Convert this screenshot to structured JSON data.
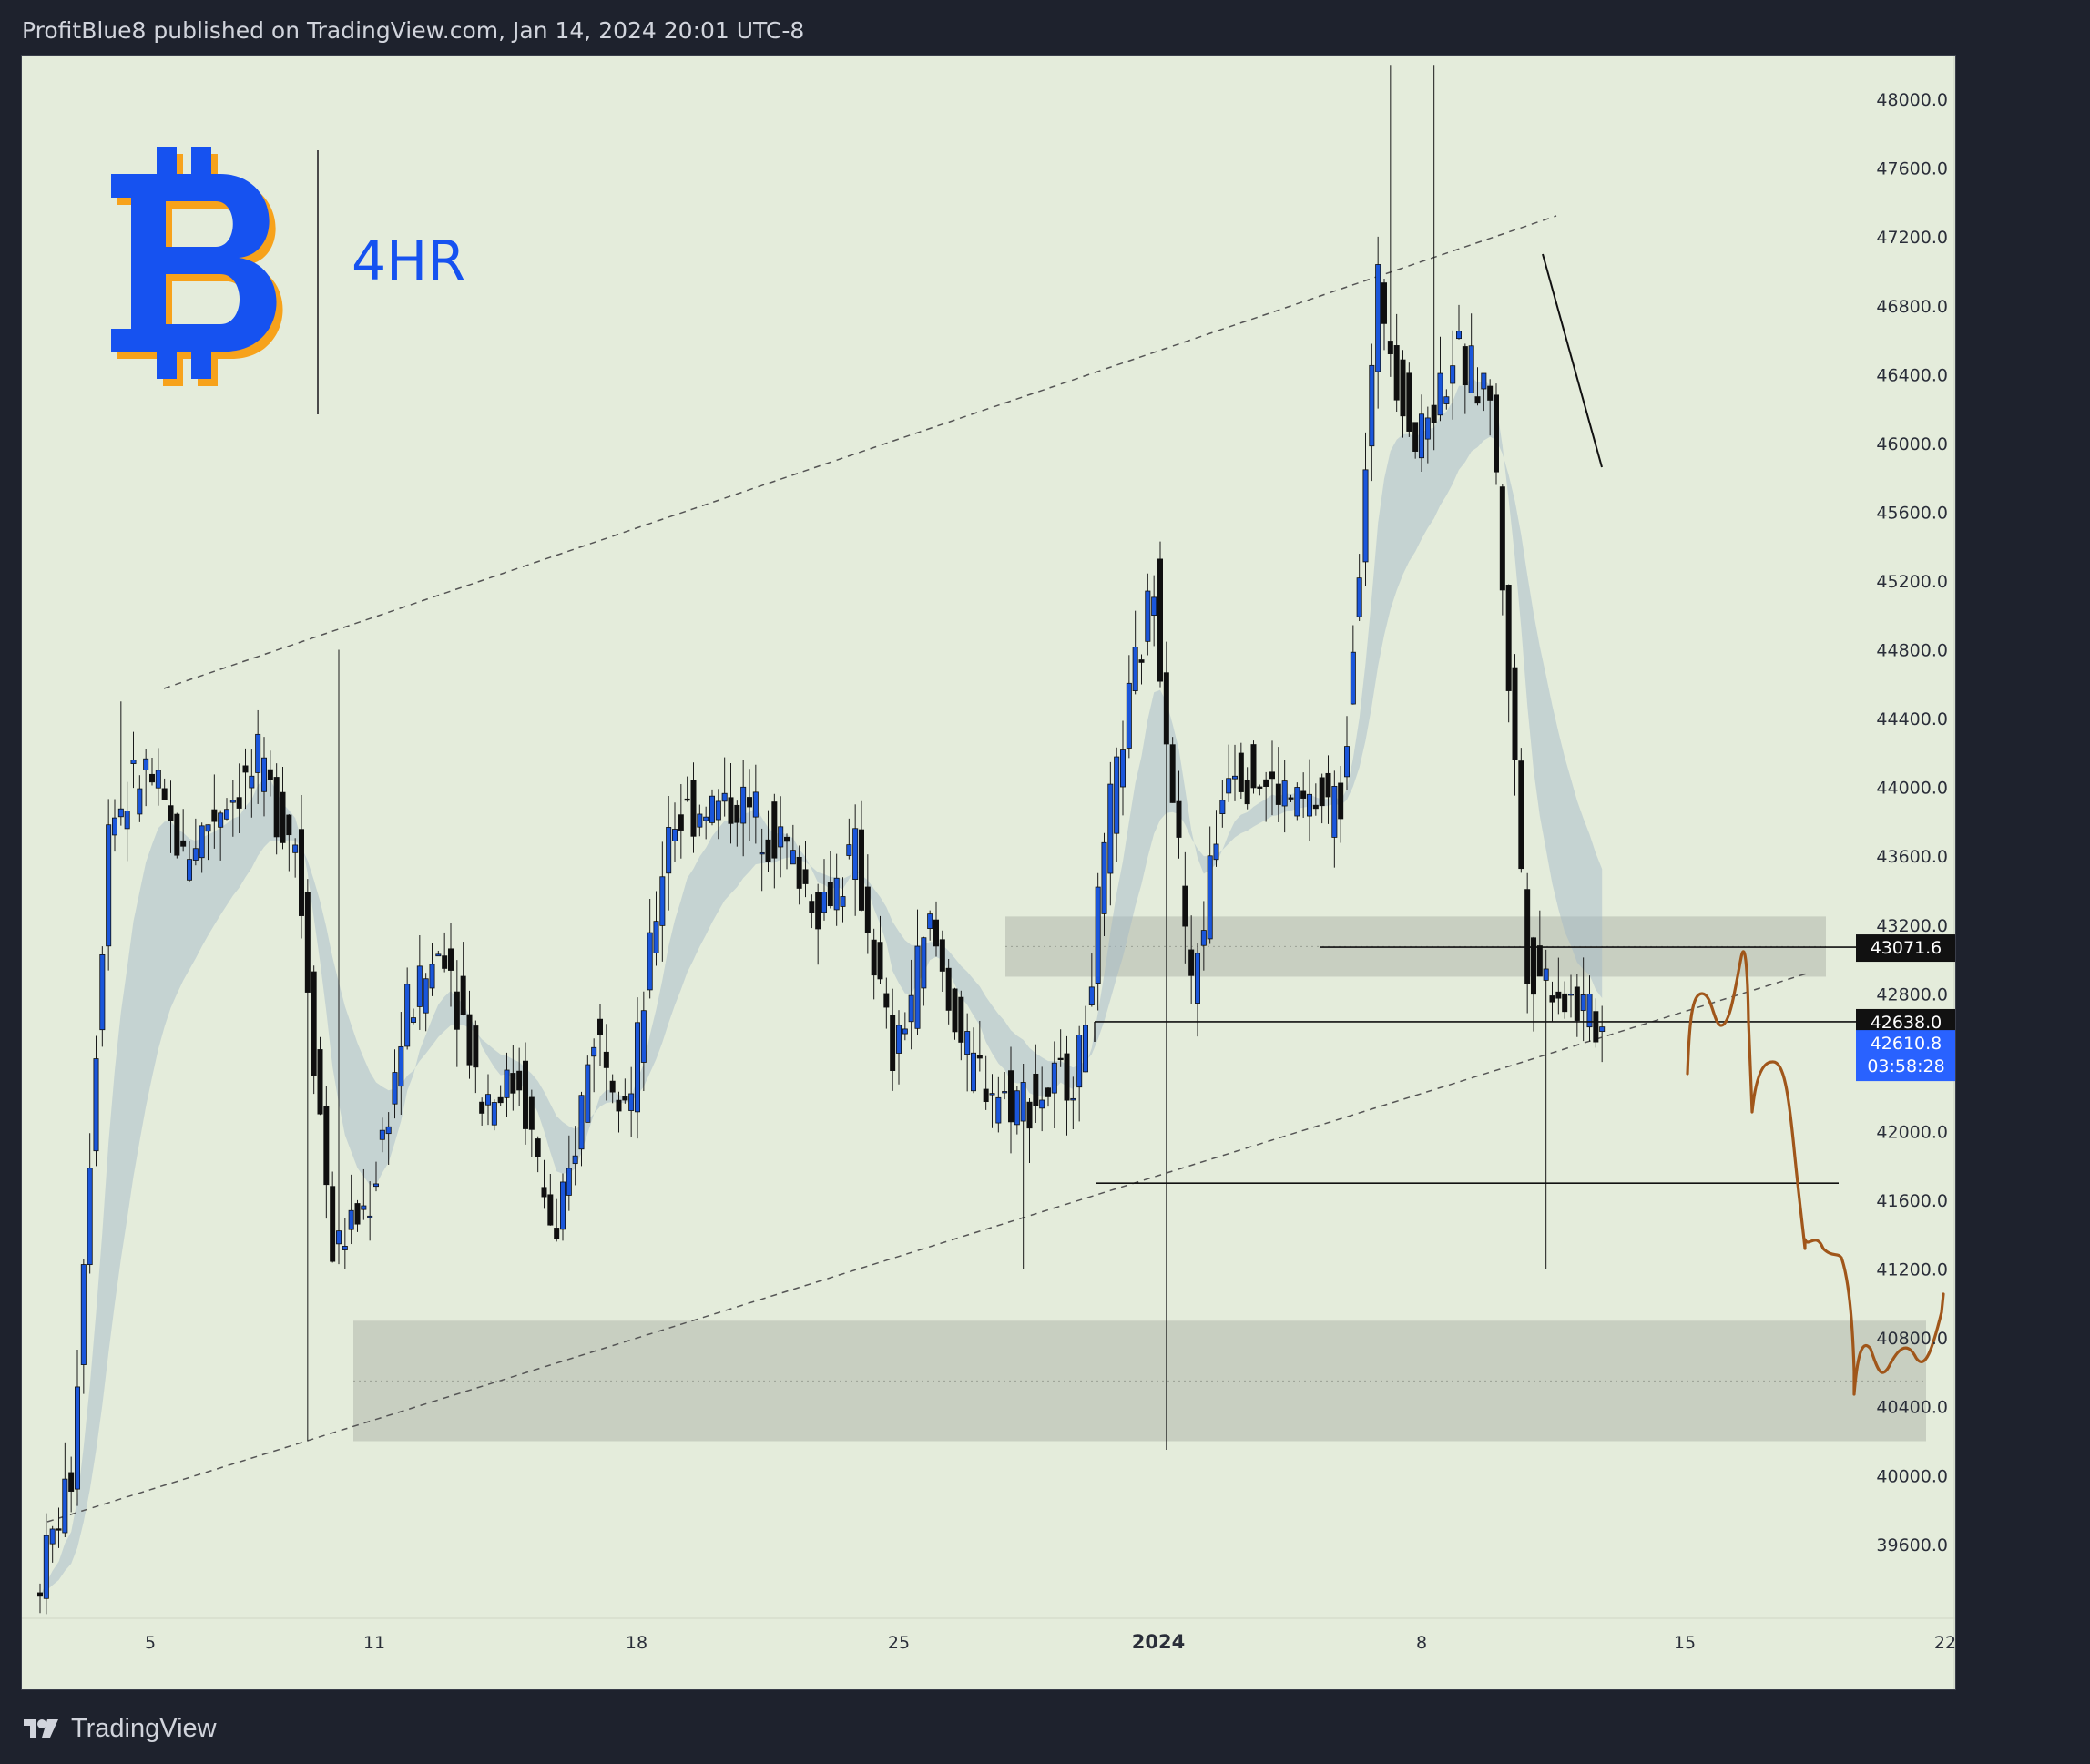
{
  "header": {
    "published_text": "ProfitBlue8 published on TradingView.com, Jan 14, 2024 20:01 UTC-8"
  },
  "overlay": {
    "timeframe_label": "4HR",
    "logo_icon": "bitcoin-icon"
  },
  "price_labels": {
    "level_price": "43071.6",
    "crosshair_price": "42638.0",
    "last_price": "42610.8",
    "countdown": "03:58:28"
  },
  "footer": {
    "brand": "TradingView",
    "logo_icon": "tradingview-logo-icon"
  },
  "colors": {
    "chart_background": "#e4ecdb",
    "page_background": "#1e222d",
    "candle_up": "#1a56db",
    "candle_down": "#0f0f0f",
    "band_up": "#9fb6c8",
    "band_down": "#c8b38a",
    "projection": "#a0561a",
    "zone": "#bfc5b8",
    "bitcoin_blue": "#1652f0",
    "bitcoin_orange": "#f7a21b",
    "price_label_blue": "#2962ff"
  },
  "chart_data": {
    "type": "candlestick",
    "symbol": "BTC",
    "timeframe": "4HR",
    "y_axis": {
      "ylim": [
        39200,
        48200
      ],
      "ticks": [
        "39600.0",
        "40000.0",
        "40400.0",
        "40800.0",
        "41200.0",
        "41600.0",
        "42000.0",
        "42400.0",
        "42800.0",
        "43200.0",
        "43600.0",
        "44000.0",
        "44400.0",
        "44800.0",
        "45200.0",
        "45600.0",
        "46000.0",
        "46400.0",
        "46800.0",
        "47200.0",
        "47600.0",
        "48000.0"
      ]
    },
    "x_axis": {
      "ticks": [
        {
          "label": "5",
          "bold": false
        },
        {
          "label": "11",
          "bold": false
        },
        {
          "label": "18",
          "bold": false
        },
        {
          "label": "25",
          "bold": false
        },
        {
          "label": "2024",
          "bold": true
        },
        {
          "label": "8",
          "bold": false
        },
        {
          "label": "15",
          "bold": false
        },
        {
          "label": "22",
          "bold": false
        }
      ]
    },
    "price_path_description_points": [
      {
        "date": "Dec 3",
        "price": 39300
      },
      {
        "date": "Dec 4",
        "price": 40000
      },
      {
        "date": "Dec 5",
        "price": 43800
      },
      {
        "date": "Dec 6",
        "price": 44100
      },
      {
        "date": "Dec 7",
        "price": 43600
      },
      {
        "date": "Dec 8",
        "price": 43900
      },
      {
        "date": "Dec 9",
        "price": 44100
      },
      {
        "date": "Dec 10",
        "price": 43700
      },
      {
        "date": "Dec 11",
        "price": 41300
      },
      {
        "date": "Dec 12",
        "price": 41600
      },
      {
        "date": "Dec 13",
        "price": 42700
      },
      {
        "date": "Dec 14",
        "price": 43100
      },
      {
        "date": "Dec 15",
        "price": 42200
      },
      {
        "date": "Dec 16",
        "price": 42300
      },
      {
        "date": "Dec 17",
        "price": 41300
      },
      {
        "date": "Dec 18",
        "price": 42600
      },
      {
        "date": "Dec 19",
        "price": 42200
      },
      {
        "date": "Dec 20",
        "price": 43800
      },
      {
        "date": "Dec 21",
        "price": 43900
      },
      {
        "date": "Dec 22",
        "price": 43900
      },
      {
        "date": "Dec 23",
        "price": 43700
      },
      {
        "date": "Dec 24",
        "price": 43300
      },
      {
        "date": "Dec 25",
        "price": 43600
      },
      {
        "date": "Dec 26",
        "price": 42400
      },
      {
        "date": "Dec 27",
        "price": 43200
      },
      {
        "date": "Dec 28",
        "price": 42400
      },
      {
        "date": "Dec 29",
        "price": 42200
      },
      {
        "date": "Dec 30",
        "price": 42200
      },
      {
        "date": "Dec 31",
        "price": 42400
      },
      {
        "date": "Jan 1",
        "price": 44100
      },
      {
        "date": "Jan 2",
        "price": 45200
      },
      {
        "date": "Jan 3",
        "price": 42800
      },
      {
        "date": "Jan 4",
        "price": 44200
      },
      {
        "date": "Jan 5",
        "price": 44000
      },
      {
        "date": "Jan 6",
        "price": 43900
      },
      {
        "date": "Jan 7",
        "price": 43900
      },
      {
        "date": "Jan 8",
        "price": 46900
      },
      {
        "date": "Jan 9",
        "price": 46000
      },
      {
        "date": "Jan 10",
        "price": 46500
      },
      {
        "date": "Jan 11",
        "price": 46300
      },
      {
        "date": "Jan 12",
        "price": 43000
      },
      {
        "date": "Jan 13",
        "price": 42800
      },
      {
        "date": "Jan 14",
        "price": 42600
      }
    ],
    "horizontal_levels": [
      43071.6,
      42638.0,
      41700
    ],
    "zones": [
      {
        "from": 42900,
        "to": 43250
      },
      {
        "from": 40200,
        "to": 40900
      }
    ],
    "channel": {
      "type": "ascending",
      "style": "dashed"
    },
    "projection": {
      "color": "brown",
      "target_zone": [
        40600,
        41200
      ]
    }
  }
}
